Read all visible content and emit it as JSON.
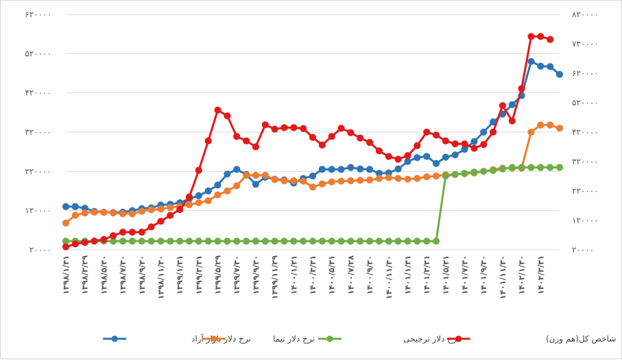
{
  "chart_data": {
    "type": "line",
    "title": "",
    "xlabel": "",
    "ylabel": "",
    "left_axis": {
      "ylim": [
        20000,
        620000
      ],
      "ticks": [
        "۲۰۰۰۰",
        "۱۲۰۰۰۰",
        "۲۲۰۰۰۰",
        "۳۲۰۰۰۰",
        "۴۲۰۰۰۰",
        "۵۲۰۰۰۰",
        "۶۲۰۰۰۰"
      ]
    },
    "right_axis": {
      "ylim": [
        20000,
        820000
      ],
      "ticks": [
        "۲۰۰۰۰",
        "۱۲۰۰۰۰",
        "۲۲۰۰۰۰",
        "۳۲۰۰۰۰",
        "۴۲۰۰۰۰",
        "۵۲۰۰۰۰",
        "۶۲۰۰۰۰",
        "۷۲۰۰۰۰",
        "۸۲۰۰۰۰"
      ]
    },
    "x_tick_labels": [
      "۱۳۹۸/۱/۳۱",
      "۱۳۹۸/۳/۲۹",
      "۱۳۹۸/۵/۳۰",
      "۱۳۹۸/۷/۳۰",
      "۱۳۹۸/۹/۳۰",
      "۱۳۹۸/۱۱/۳۰",
      "۱۳۹۹/۱/۳۱",
      "۱۳۹۹/۳/۳۱",
      "۱۳۹۹/۵/۲۹",
      "۱۳۹۹/۷/۳۰",
      "۱۳۹۹/۹/۳۰",
      "۱۳۹۹/۱۱/۲۹",
      "۱۴۰۰/۱/۳۱",
      "۱۴۰۰/۳/۳۱",
      "۱۴۰۰/۵/۳۱",
      "۱۴۰۰/۷/۲۸",
      "۱۴۰۰/۹/۳۰",
      "۱۴۰۰/۱۱/۳۰",
      "۱۴۰۱/۱/۳۱",
      "۱۴۰۱/۳/۳۱",
      "۱۴۰۱/۵/۳۱",
      "۱۴۰۱/۷/۳۰",
      "۱۴۰۱/۹/۳۰",
      "۱۴۰۱/۱۱/۳۰",
      "۱۴۰۲/۱/۳۰",
      "۱۴۰۲/۳/۳۱"
    ],
    "grid": "horizontal",
    "legend_position": "bottom",
    "series": [
      {
        "name": "نرخ دلار بازار آزاد",
        "axis": "left",
        "color": "#2E75B6",
        "values": [
          130000,
          130000,
          126000,
          118000,
          116000,
          115000,
          116000,
          120000,
          125000,
          127000,
          134000,
          136000,
          140000,
          150000,
          158000,
          170000,
          185000,
          213000,
          225000,
          212000,
          187000,
          205000,
          200000,
          198000,
          190000,
          202000,
          208000,
          225000,
          225000,
          225000,
          230000,
          226000,
          225000,
          215000,
          216000,
          226000,
          245000,
          255000,
          258000,
          240000,
          256000,
          262000,
          276000,
          296000,
          320000,
          346000,
          366000,
          390000,
          413000,
          500000,
          488000,
          487000,
          467000
        ]
      },
      {
        "name": "نرخ دلار نیما",
        "axis": "left",
        "color": "#ED7D31",
        "values": [
          88000,
          108000,
          114000,
          116000,
          116000,
          114000,
          112000,
          112000,
          118000,
          122000,
          124000,
          128000,
          131000,
          135000,
          140000,
          145000,
          160000,
          170000,
          183000,
          210000,
          210000,
          210000,
          199000,
          196000,
          196000,
          195000,
          180000,
          188000,
          193000,
          195000,
          196000,
          197000,
          198000,
          202000,
          204000,
          202000,
          200000,
          202000,
          206000,
          208000,
          211000,
          212000,
          214000,
          216000,
          220000,
          224000,
          228000,
          228000,
          228000,
          320000,
          338000,
          338000,
          330000
        ]
      },
      {
        "name": "نرخ دلار ترجیحی",
        "axis": "left",
        "color": "#70AD47",
        "values": [
          42000,
          42000,
          42000,
          42000,
          42000,
          42000,
          42000,
          42000,
          42000,
          42000,
          42000,
          42000,
          42000,
          42000,
          42000,
          42000,
          42000,
          42000,
          42000,
          42000,
          42000,
          42000,
          42000,
          42000,
          42000,
          42000,
          42000,
          42000,
          42000,
          42000,
          42000,
          42000,
          42000,
          42000,
          42000,
          42000,
          42000,
          42000,
          42000,
          42000,
          208000,
          212000,
          215000,
          218000,
          220000,
          222000,
          226000,
          230000,
          230000,
          230000,
          230000,
          230000,
          230000
        ]
      },
      {
        "name": "شاخص کل(هم وزن)",
        "axis": "right",
        "color": "#E31A1C",
        "values": [
          30000,
          40000,
          45000,
          50000,
          55000,
          68000,
          80000,
          80000,
          80000,
          98000,
          117000,
          137000,
          157000,
          200000,
          290000,
          390000,
          495000,
          475000,
          405000,
          390000,
          370000,
          445000,
          430000,
          435000,
          435000,
          432000,
          402000,
          376000,
          405000,
          433000,
          418000,
          400000,
          385000,
          356000,
          337000,
          328000,
          340000,
          374000,
          420000,
          410000,
          390000,
          380000,
          380000,
          365000,
          378000,
          420000,
          510000,
          458000,
          568000,
          745000,
          745000,
          735000,
          0
        ]
      }
    ]
  },
  "legend": [
    {
      "label": "نرخ دلار بازار آزاد",
      "color": "#2E75B6"
    },
    {
      "label": "نرخ دلار نیما",
      "color": "#ED7D31"
    },
    {
      "label": "نرخ دلار ترجیحی",
      "color": "#70AD47"
    },
    {
      "label": "شاخص کل(هم وزن)",
      "color": "#E31A1C"
    }
  ]
}
